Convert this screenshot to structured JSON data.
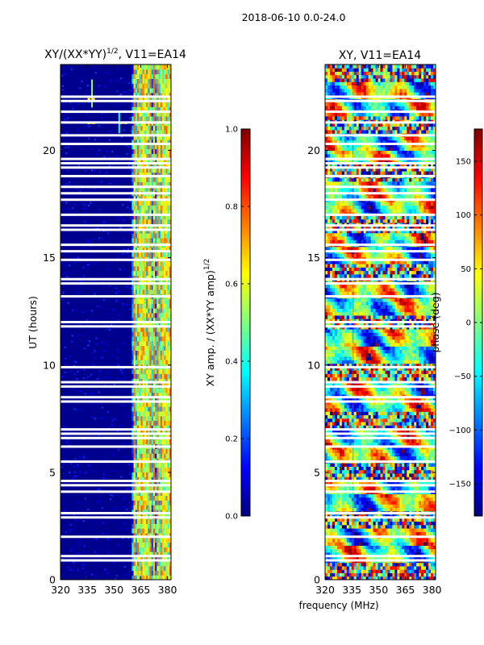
{
  "suptitle": "2018-06-10 0.0-24.0",
  "shared_xlabel": "frequency (MHz)",
  "chart_data": [
    {
      "type": "heatmap",
      "title_main": "XY/(XX*YY)",
      "title_sup": "1/2",
      "title_tail": ", V11=EA14",
      "xlabel": "",
      "ylabel": "UT (hours)",
      "xlim": [
        320,
        382
      ],
      "ylim": [
        0,
        24
      ],
      "xticks": [
        320,
        335,
        350,
        365,
        380
      ],
      "yticks": [
        0,
        5,
        10,
        15,
        20
      ],
      "colormap": "jet",
      "background_color": "#00008f",
      "bright_band_mhz": [
        360,
        382
      ],
      "gap_rows_ut": [
        0.9,
        1.1,
        2.0,
        2.9,
        3.1,
        4.1,
        4.4,
        4.6,
        5.5,
        6.2,
        6.6,
        6.8,
        7.0,
        8.3,
        8.5,
        9.0,
        9.2,
        9.9,
        11.8,
        12.0,
        13.2,
        13.8,
        14.0,
        14.9,
        15.3,
        15.6,
        16.3,
        16.5,
        17.0,
        17.7,
        18.0,
        18.3,
        18.8,
        19.2,
        19.4,
        19.6,
        20.3,
        20.7,
        21.3,
        21.8,
        22.3,
        22.5
      ]
    },
    {
      "type": "heatmap",
      "title": "XY, V11=EA14",
      "xlabel": "frequency (MHz)",
      "ylabel": "",
      "xlim": [
        320,
        382
      ],
      "ylim": [
        0,
        24
      ],
      "xticks": [
        320,
        335,
        350,
        365,
        380
      ],
      "yticks": [
        0,
        5,
        10,
        15,
        20
      ],
      "colormap": "jet",
      "gap_rows_ut": [
        0.9,
        1.1,
        2.0,
        2.9,
        3.1,
        4.1,
        4.4,
        4.6,
        5.5,
        6.2,
        6.6,
        6.8,
        7.0,
        8.3,
        8.5,
        9.0,
        9.2,
        9.9,
        11.8,
        12.0,
        13.2,
        13.8,
        14.0,
        14.9,
        15.3,
        15.6,
        16.3,
        16.5,
        17.0,
        17.7,
        18.0,
        18.3,
        18.8,
        19.2,
        19.4,
        19.6,
        20.3,
        20.7,
        21.3,
        21.8,
        22.3,
        22.5
      ]
    }
  ],
  "colorbar_amp": {
    "label_main": "XY amp. / (XX*YY amp)",
    "label_sup": "1/2",
    "range": [
      0.0,
      1.0
    ],
    "ticks": [
      0.0,
      0.2,
      0.4,
      0.6,
      0.8,
      1.0
    ],
    "tick_labels": [
      "0.0",
      "0.2",
      "0.4",
      "0.6",
      "0.8",
      "1.0"
    ]
  },
  "colorbar_phase": {
    "label": "phase (deg)",
    "range": [
      -180,
      180
    ],
    "ticks": [
      -150,
      -100,
      -50,
      0,
      50,
      100,
      150
    ],
    "tick_labels": [
      "−150",
      "−100",
      "−50",
      "0",
      "50",
      "100",
      "150"
    ]
  },
  "colors": {
    "jet": [
      "#00007f",
      "#0000ff",
      "#007fff",
      "#00ffff",
      "#7fff7f",
      "#ffff00",
      "#ff7f00",
      "#ff0000",
      "#7f0000"
    ]
  }
}
